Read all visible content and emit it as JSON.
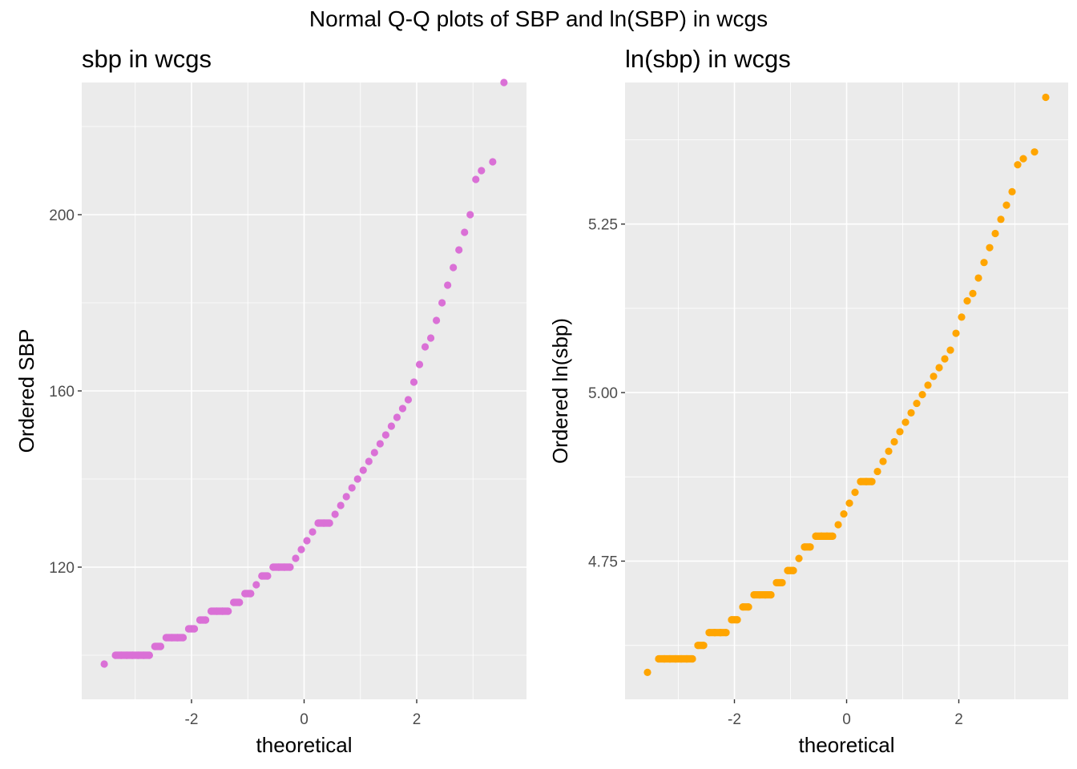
{
  "figure": {
    "title": "Normal Q-Q plots of SBP and ln(SBP) in wcgs"
  },
  "colors": {
    "panel_bg": "#EBEBEB",
    "grid": "#FFFFFF",
    "tick_text": "#4D4D4D",
    "left_points": "#DA70D6",
    "right_points": "#FFA500"
  },
  "chart_data": [
    {
      "type": "scatter",
      "title": "sbp in wcgs",
      "xlabel": "theoretical",
      "ylabel": "Ordered SBP",
      "xlim": [
        -3.95,
        3.95
      ],
      "ylim": [
        90,
        230
      ],
      "x_ticks": [
        -2,
        0,
        2
      ],
      "x_tick_labels": [
        "-2",
        "0",
        "2"
      ],
      "y_ticks": [
        120,
        160,
        200
      ],
      "y_tick_labels": [
        "120",
        "160",
        "200"
      ],
      "grid": true,
      "series": [
        {
          "color": "#DA70D6",
          "points": [
            [
              -3.55,
              98
            ],
            [
              -3.35,
              100
            ],
            [
              -3.25,
              100
            ],
            [
              -3.15,
              100
            ],
            [
              -3.05,
              100
            ],
            [
              -2.95,
              100
            ],
            [
              -2.85,
              100
            ],
            [
              -2.75,
              100
            ],
            [
              -2.65,
              102
            ],
            [
              -2.55,
              102
            ],
            [
              -2.45,
              104
            ],
            [
              -2.35,
              104
            ],
            [
              -2.25,
              104
            ],
            [
              -2.15,
              104
            ],
            [
              -2.05,
              106
            ],
            [
              -1.95,
              106
            ],
            [
              -1.85,
              108
            ],
            [
              -1.75,
              108
            ],
            [
              -1.65,
              110
            ],
            [
              -1.55,
              110
            ],
            [
              -1.45,
              110
            ],
            [
              -1.35,
              110
            ],
            [
              -1.25,
              112
            ],
            [
              -1.15,
              112
            ],
            [
              -1.05,
              114
            ],
            [
              -0.95,
              114
            ],
            [
              -0.85,
              116
            ],
            [
              -0.75,
              118
            ],
            [
              -0.65,
              118
            ],
            [
              -0.55,
              120
            ],
            [
              -0.45,
              120
            ],
            [
              -0.35,
              120
            ],
            [
              -0.25,
              120
            ],
            [
              -0.15,
              122
            ],
            [
              -0.05,
              124
            ],
            [
              0.05,
              126
            ],
            [
              0.15,
              128
            ],
            [
              0.25,
              130
            ],
            [
              0.35,
              130
            ],
            [
              0.45,
              130
            ],
            [
              0.55,
              132
            ],
            [
              0.65,
              134
            ],
            [
              0.75,
              136
            ],
            [
              0.85,
              138
            ],
            [
              0.95,
              140
            ],
            [
              1.05,
              142
            ],
            [
              1.15,
              144
            ],
            [
              1.25,
              146
            ],
            [
              1.35,
              148
            ],
            [
              1.45,
              150
            ],
            [
              1.55,
              152
            ],
            [
              1.65,
              154
            ],
            [
              1.75,
              156
            ],
            [
              1.85,
              158
            ],
            [
              1.95,
              162
            ],
            [
              2.05,
              166
            ],
            [
              2.15,
              170
            ],
            [
              2.25,
              172
            ],
            [
              2.35,
              176
            ],
            [
              2.45,
              180
            ],
            [
              2.55,
              184
            ],
            [
              2.65,
              188
            ],
            [
              2.75,
              192
            ],
            [
              2.85,
              196
            ],
            [
              2.95,
              200
            ],
            [
              3.05,
              208
            ],
            [
              3.15,
              210
            ],
            [
              3.35,
              212
            ],
            [
              3.55,
              230
            ]
          ]
        }
      ]
    },
    {
      "type": "scatter",
      "title": "ln(sbp) in wcgs",
      "xlabel": "theoretical",
      "ylabel": "Ordered ln(sbp)",
      "xlim": [
        -3.95,
        3.95
      ],
      "ylim": [
        4.545,
        5.46
      ],
      "x_ticks": [
        -2,
        0,
        2
      ],
      "x_tick_labels": [
        "-2",
        "0",
        "2"
      ],
      "y_ticks": [
        4.75,
        5.0,
        5.25
      ],
      "y_tick_labels": [
        "4.75",
        "5.00",
        "5.25"
      ],
      "grid": true,
      "series": [
        {
          "color": "#FFA500",
          "points": [
            [
              -3.55,
              4.585
            ],
            [
              -3.35,
              4.605
            ],
            [
              -3.25,
              4.605
            ],
            [
              -3.15,
              4.605
            ],
            [
              -3.05,
              4.605
            ],
            [
              -2.95,
              4.605
            ],
            [
              -2.85,
              4.605
            ],
            [
              -2.75,
              4.605
            ],
            [
              -2.65,
              4.625
            ],
            [
              -2.55,
              4.625
            ],
            [
              -2.45,
              4.644
            ],
            [
              -2.35,
              4.644
            ],
            [
              -2.25,
              4.644
            ],
            [
              -2.15,
              4.644
            ],
            [
              -2.05,
              4.663
            ],
            [
              -1.95,
              4.663
            ],
            [
              -1.85,
              4.682
            ],
            [
              -1.75,
              4.682
            ],
            [
              -1.65,
              4.7
            ],
            [
              -1.55,
              4.7
            ],
            [
              -1.45,
              4.7
            ],
            [
              -1.35,
              4.7
            ],
            [
              -1.25,
              4.718
            ],
            [
              -1.15,
              4.718
            ],
            [
              -1.05,
              4.736
            ],
            [
              -0.95,
              4.736
            ],
            [
              -0.85,
              4.754
            ],
            [
              -0.75,
              4.771
            ],
            [
              -0.65,
              4.771
            ],
            [
              -0.55,
              4.787
            ],
            [
              -0.45,
              4.787
            ],
            [
              -0.35,
              4.787
            ],
            [
              -0.25,
              4.787
            ],
            [
              -0.15,
              4.804
            ],
            [
              -0.05,
              4.82
            ],
            [
              0.05,
              4.836
            ],
            [
              0.15,
              4.852
            ],
            [
              0.25,
              4.868
            ],
            [
              0.35,
              4.868
            ],
            [
              0.45,
              4.868
            ],
            [
              0.55,
              4.883
            ],
            [
              0.65,
              4.898
            ],
            [
              0.75,
              4.913
            ],
            [
              0.85,
              4.927
            ],
            [
              0.95,
              4.942
            ],
            [
              1.05,
              4.956
            ],
            [
              1.15,
              4.97
            ],
            [
              1.25,
              4.984
            ],
            [
              1.35,
              4.997
            ],
            [
              1.45,
              5.011
            ],
            [
              1.55,
              5.024
            ],
            [
              1.65,
              5.037
            ],
            [
              1.75,
              5.05
            ],
            [
              1.85,
              5.063
            ],
            [
              1.95,
              5.088
            ],
            [
              2.05,
              5.112
            ],
            [
              2.15,
              5.136
            ],
            [
              2.25,
              5.147
            ],
            [
              2.35,
              5.17
            ],
            [
              2.45,
              5.193
            ],
            [
              2.55,
              5.215
            ],
            [
              2.65,
              5.236
            ],
            [
              2.75,
              5.257
            ],
            [
              2.85,
              5.278
            ],
            [
              2.95,
              5.298
            ],
            [
              3.05,
              5.338
            ],
            [
              3.15,
              5.347
            ],
            [
              3.35,
              5.357
            ],
            [
              3.55,
              5.438
            ]
          ]
        }
      ]
    }
  ]
}
